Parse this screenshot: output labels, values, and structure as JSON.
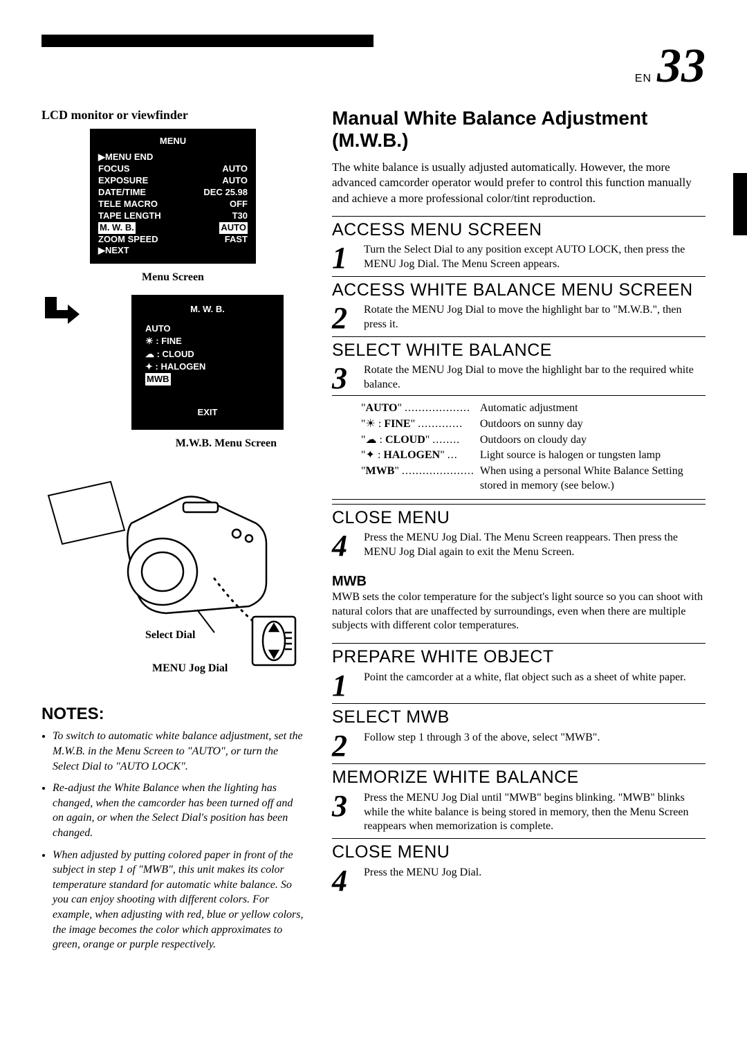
{
  "page": {
    "lang": "EN",
    "number": "33"
  },
  "left": {
    "lcd_label": "LCD monitor or viewfinder",
    "menu_screen": {
      "title": "MENU",
      "rows": [
        {
          "label": "▶MENU END",
          "value": ""
        },
        {
          "label": "FOCUS",
          "value": "AUTO"
        },
        {
          "label": "EXPOSURE",
          "value": "AUTO"
        },
        {
          "label": "DATE/TIME",
          "value": "DEC 25.98"
        },
        {
          "label": "TELE  MACRO",
          "value": "OFF"
        },
        {
          "label": "TAPE LENGTH",
          "value": "T30"
        },
        {
          "label": "M. W. B.",
          "value": "AUTO",
          "highlighted": true
        },
        {
          "label": "ZOOM SPEED",
          "value": "FAST"
        },
        {
          "label": "▶NEXT",
          "value": ""
        }
      ],
      "caption": "Menu Screen"
    },
    "mwb_screen": {
      "title": "M. W. B.",
      "lines": [
        "AUTO",
        "☀ : FINE",
        "☁ : CLOUD",
        "✦ : HALOGEN",
        "MWB"
      ],
      "highlight_index": 4,
      "exit": "EXIT",
      "caption": "M.W.B. Menu Screen"
    },
    "callouts": {
      "select_dial": "Select Dial",
      "jog_dial": "MENU Jog Dial"
    },
    "notes": {
      "heading": "NOTES:",
      "items": [
        "To switch to automatic white balance adjustment, set the M.W.B. in the Menu Screen to \"AUTO\", or turn the Select Dial to \"AUTO LOCK\".",
        "Re-adjust the White Balance when the lighting has changed, when the camcorder has been turned off and on again, or when the Select Dial's position has been changed.",
        "When adjusted by putting colored paper in front of the subject in step 1 of \"MWB\", this unit makes its color temperature standard for automatic white balance. So you can enjoy shooting with different colors. For example, when adjusting with red, blue or yellow colors, the image becomes the color which approximates to green, orange or purple respectively."
      ]
    }
  },
  "right": {
    "h1": "Manual White Balance Adjustment (M.W.B.)",
    "intro": "The white balance is usually adjusted automatically. However, the more advanced camcorder operator would prefer to control this function manually and achieve a more professional color/tint reproduction.",
    "steps_a": [
      {
        "n": "1",
        "title": "ACCESS MENU SCREEN",
        "text": "Turn the Select Dial to any position except AUTO LOCK, then press the MENU Jog Dial. The Menu Screen appears."
      },
      {
        "n": "2",
        "title": "ACCESS WHITE BALANCE MENU SCREEN",
        "text": "Rotate the MENU Jog Dial to move the highlight bar to \"M.W.B.\", then press it."
      },
      {
        "n": "3",
        "title": "SELECT WHITE BALANCE",
        "text": "Rotate the MENU Jog Dial to move the highlight bar to the required white balance."
      },
      {
        "n": "4",
        "title": "CLOSE MENU",
        "text": "Press the MENU Jog Dial. The Menu Screen reappears. Then press the MENU Jog Dial again to exit the Menu Screen."
      }
    ],
    "wb_options": [
      {
        "key": "\"AUTO\"",
        "dots": "...................",
        "desc": "Automatic adjustment"
      },
      {
        "key": "\"☀  : FINE\"",
        "dots": ".............",
        "desc": "Outdoors on sunny day"
      },
      {
        "key": "\"☁  : CLOUD\"",
        "dots": "........",
        "desc": "Outdoors on cloudy day"
      },
      {
        "key": "\"✦  : HALOGEN\"",
        "dots": "...",
        "desc": "Light source is halogen or tungsten lamp"
      },
      {
        "key": "\"MWB\"",
        "dots": ".....................",
        "desc": "When using a personal White Balance Setting stored in memory (see below.)"
      }
    ],
    "mwb_sub": {
      "title": "MWB",
      "text": "MWB sets the color temperature for the subject's light source so you can shoot with natural colors that are unaffected by surroundings, even when there are multiple subjects with different color temperatures."
    },
    "steps_b": [
      {
        "n": "1",
        "title": "PREPARE WHITE OBJECT",
        "text": "Point the camcorder at a white, flat object such as a sheet of white paper."
      },
      {
        "n": "2",
        "title": "SELECT MWB",
        "text": "Follow step 1 through 3 of the above, select \"MWB\"."
      },
      {
        "n": "3",
        "title": "MEMORIZE WHITE BALANCE",
        "text": "Press the MENU Jog Dial until \"MWB\" begins blinking. \"MWB\" blinks while the white balance is being stored in memory, then the Menu Screen reappears when memorization is complete."
      },
      {
        "n": "4",
        "title": "CLOSE MENU",
        "text": "Press the MENU Jog Dial."
      }
    ]
  }
}
